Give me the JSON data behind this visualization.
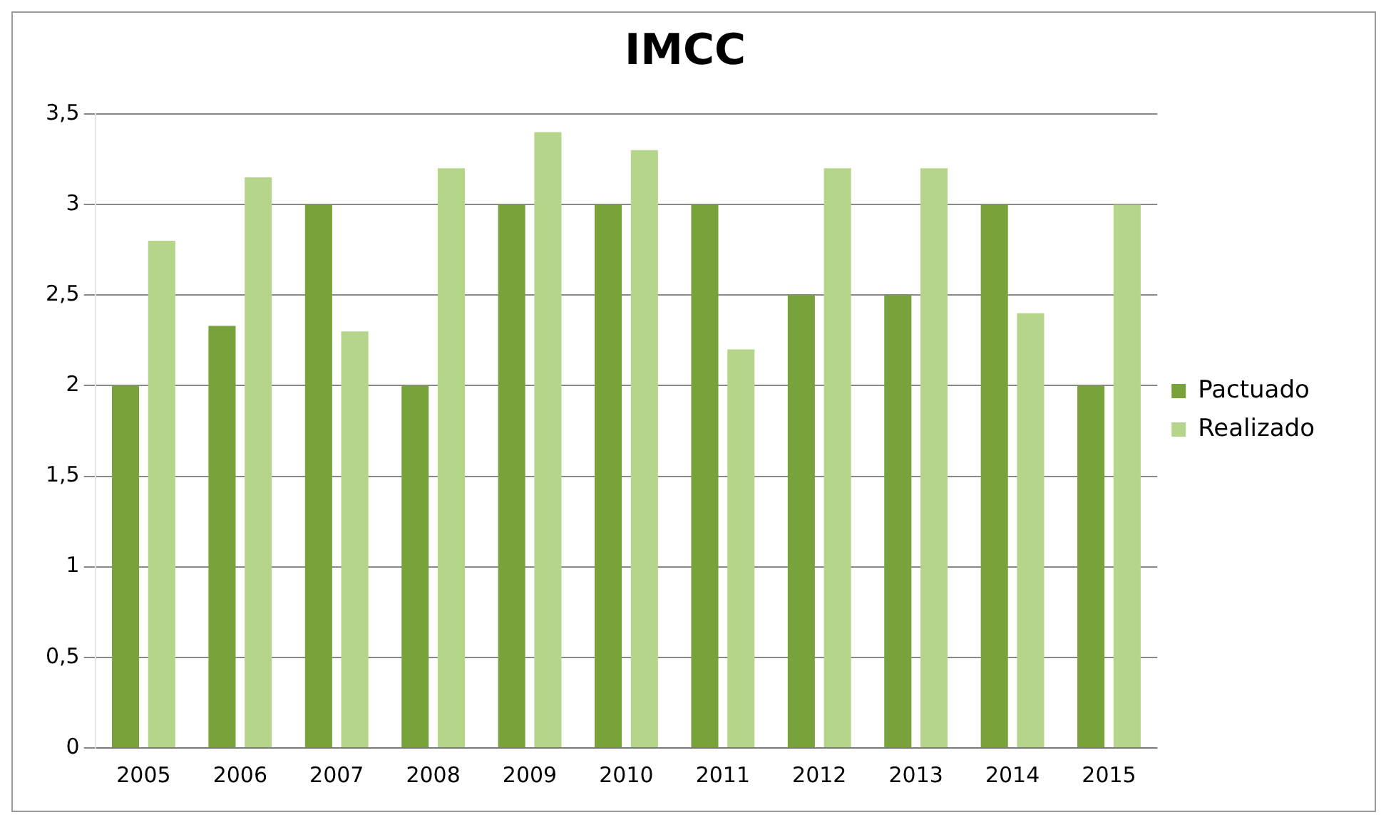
{
  "chart_data": {
    "type": "bar",
    "title": "IMCC",
    "categories": [
      "2005",
      "2006",
      "2007",
      "2008",
      "2009",
      "2010",
      "2011",
      "2012",
      "2013",
      "2014",
      "2015"
    ],
    "series": [
      {
        "name": "Pactuado",
        "color": "#77a33a",
        "values": [
          2,
          2.33,
          3,
          2,
          3,
          3,
          3,
          2.5,
          2.5,
          3,
          2
        ]
      },
      {
        "name": "Realizado",
        "color": "#b5d68a",
        "values": [
          2.8,
          3.15,
          2.3,
          3.2,
          3.4,
          3.3,
          2.2,
          3.2,
          3.2,
          2.4,
          3
        ]
      }
    ],
    "ylim": [
      0,
      3.5
    ],
    "yticks": [
      0,
      {
        "value": 0.5,
        "label": "0,5"
      },
      1,
      {
        "value": 1.5,
        "label": "1,5"
      },
      2,
      {
        "value": 2.5,
        "label": "2,5"
      },
      3,
      {
        "value": 3.5,
        "label": "3,5"
      }
    ],
    "grid": "y",
    "legend": "right"
  }
}
